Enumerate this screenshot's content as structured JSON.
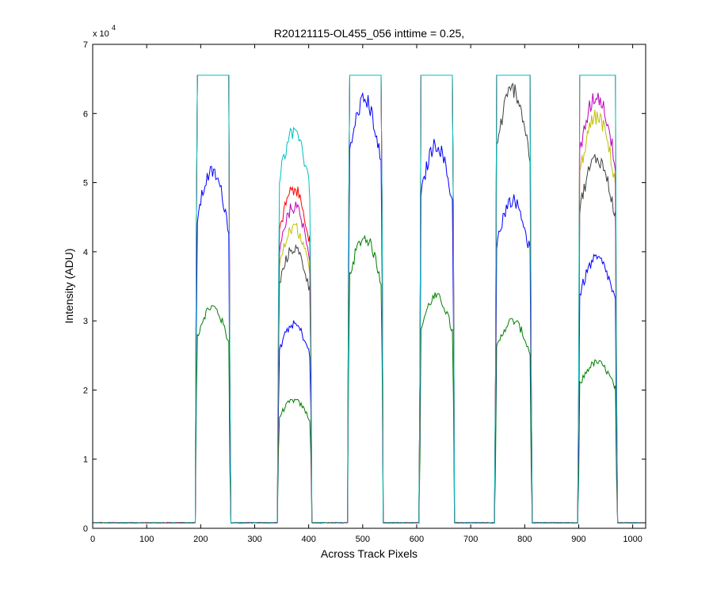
{
  "chart_data": {
    "type": "line",
    "title": "R20121115-OL455_056 inttime = 0.25,",
    "xlabel": "Across Track Pixels",
    "ylabel": "Intensity (ADU)",
    "xlim": [
      0,
      1024
    ],
    "ylim": [
      0,
      70000
    ],
    "y_exponent_label": "x 10",
    "y_exponent_power": "4",
    "x_ticks": [
      0,
      100,
      200,
      300,
      400,
      500,
      600,
      700,
      800,
      900,
      1000
    ],
    "x_tick_labels": [
      "0",
      "100",
      "200",
      "300",
      "400",
      "500",
      "600",
      "700",
      "800",
      "900",
      "1000"
    ],
    "y_ticks": [
      0,
      10000,
      20000,
      30000,
      40000,
      50000,
      60000,
      70000
    ],
    "y_tick_labels": [
      "0",
      "1",
      "2",
      "3",
      "4",
      "5",
      "6",
      "7"
    ],
    "grid": false,
    "legend": "none",
    "baseline": 800,
    "saturation": 65535,
    "bands": [
      {
        "x0": 193,
        "x1": 252
      },
      {
        "x0": 345,
        "x1": 403
      },
      {
        "x0": 475,
        "x1": 535
      },
      {
        "x0": 608,
        "x1": 667
      },
      {
        "x0": 748,
        "x1": 810
      },
      {
        "x0": 902,
        "x1": 968
      }
    ],
    "series": [
      {
        "color": "#008000",
        "peaks": [
          32000,
          18500,
          42000,
          33500,
          30000,
          24000
        ]
      },
      {
        "color": "#0000ff",
        "peaks": [
          51500,
          29500,
          62000,
          55500,
          47500,
          39000
        ]
      },
      {
        "color": "#404040",
        "peaks": [
          65535,
          40500,
          65535,
          65535,
          63500,
          53500
        ]
      },
      {
        "color": "#bfbf00",
        "peaks": [
          65535,
          43500,
          65535,
          65535,
          65535,
          59500
        ]
      },
      {
        "color": "#bf00bf",
        "peaks": [
          65535,
          46500,
          65535,
          65535,
          65535,
          62500
        ]
      },
      {
        "color": "#ff0000",
        "peaks": [
          65535,
          49000,
          65535,
          65535,
          65535,
          65535
        ]
      },
      {
        "color": "#00bfbf",
        "peaks": [
          65535,
          57500,
          65535,
          65535,
          65535,
          65535
        ]
      }
    ]
  }
}
